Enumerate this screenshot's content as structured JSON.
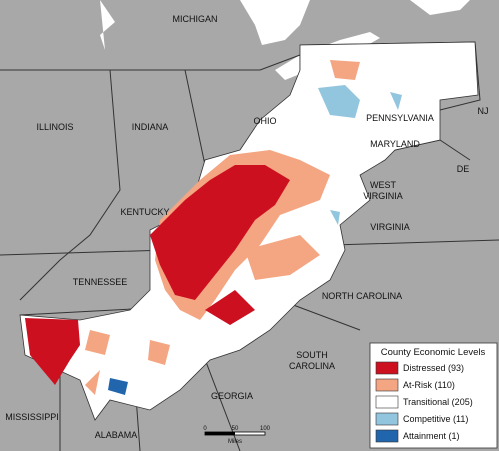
{
  "map": {
    "labels": [
      [
        "MICHIGAN"
      ],
      [
        "ILLINOIS"
      ],
      [
        "INDIANA"
      ],
      [
        "OHIO"
      ],
      [
        "PENNSYLVANIA"
      ],
      [
        "NJ"
      ],
      [
        "MARYLAND"
      ],
      [
        "DE"
      ],
      [
        "WEST",
        "VIRGINIA"
      ],
      [
        "VIRGINIA"
      ],
      [
        "KENTUCKY"
      ],
      [
        "TENNESSEE"
      ],
      [
        "NORTH CAROLINA"
      ],
      [
        "SOUTH",
        "CAROLINA"
      ],
      [
        "GEORGIA"
      ],
      [
        "MISSISSIPPI"
      ],
      [
        "ALABAMA"
      ]
    ],
    "legend": {
      "title": "County Economic Levels",
      "items": [
        "Distressed (93)",
        "At-Risk (110)",
        "Transitional (205)",
        "Competitive (11)",
        "Attainment (1)"
      ]
    },
    "scale": {
      "ticks": [
        "0",
        "50",
        "100"
      ],
      "unit": "Miles"
    }
  }
}
